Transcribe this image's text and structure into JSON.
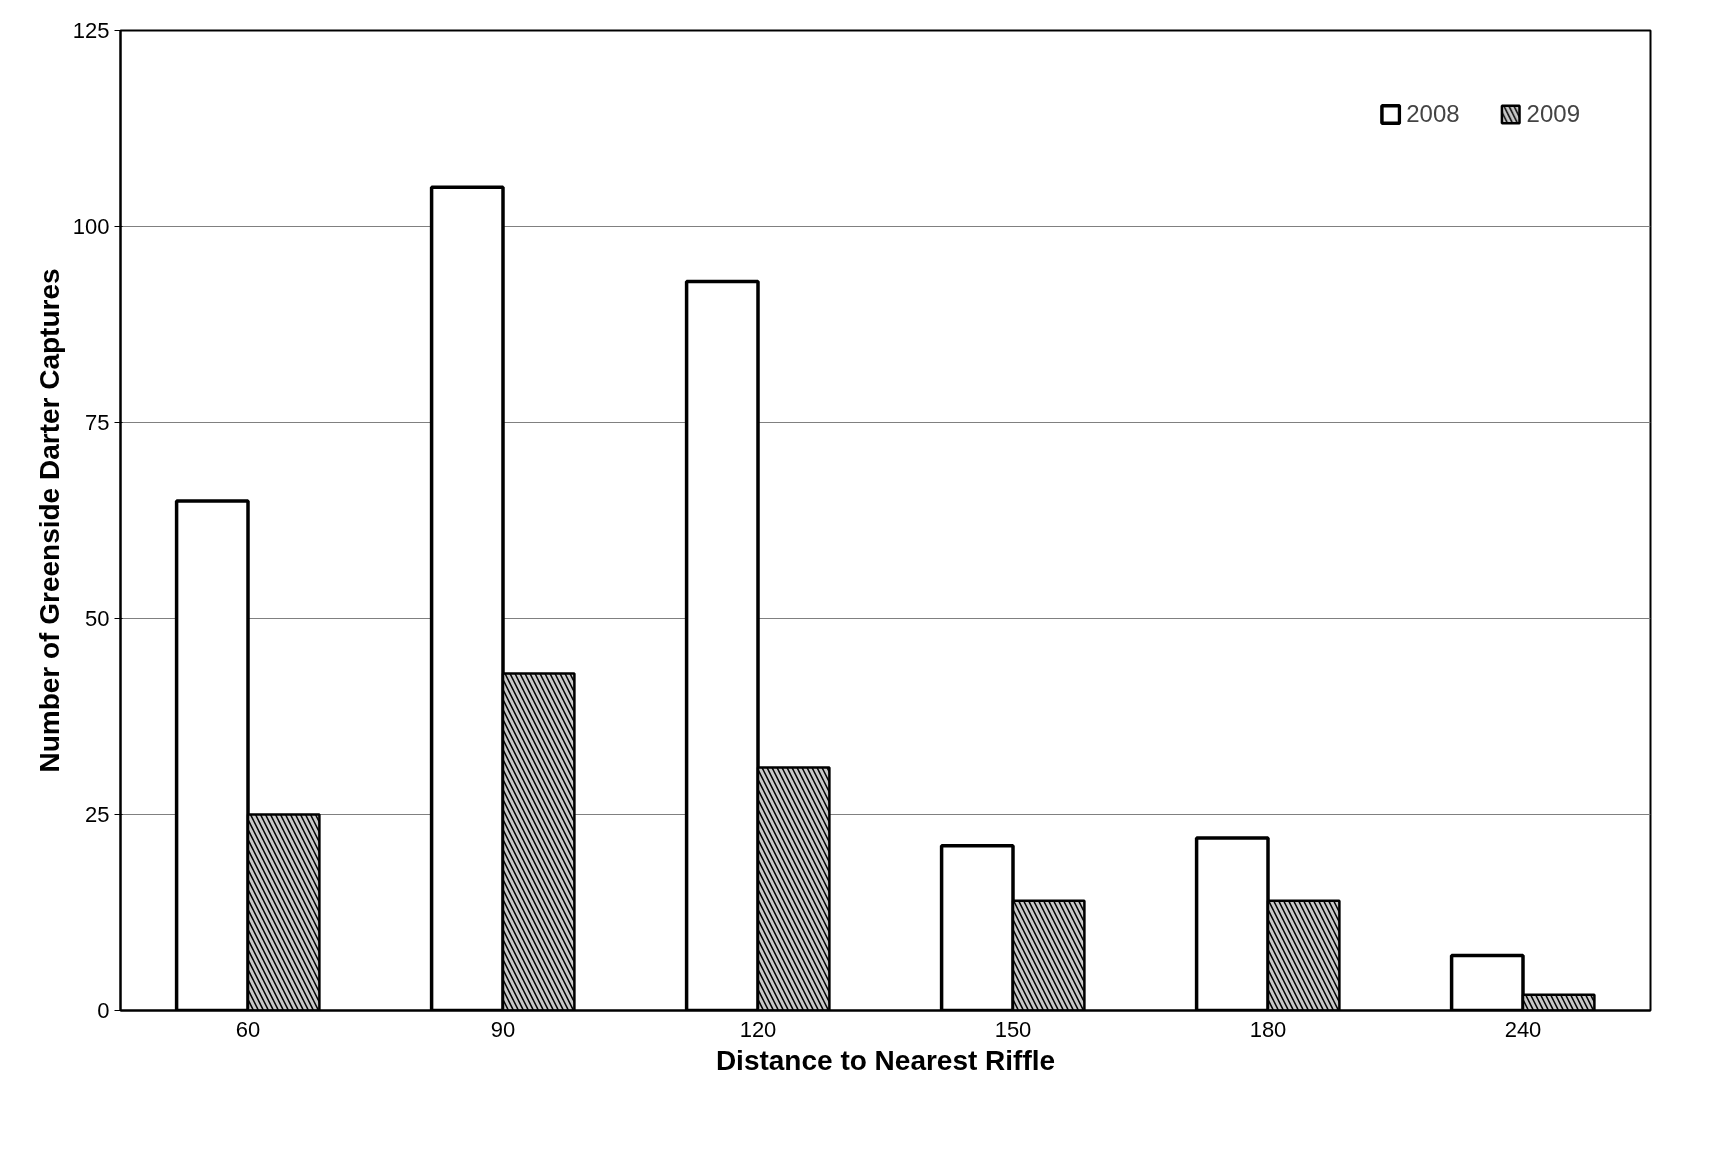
{
  "chart_data": {
    "type": "bar",
    "xlabel": "Distance to Nearest Riffle",
    "ylabel": "Number of Greenside Darter Captures",
    "categories": [
      "60",
      "90",
      "120",
      "150",
      "180",
      "240"
    ],
    "series": [
      {
        "name": "2008",
        "color": "#ffffff",
        "values": [
          65,
          105,
          93,
          21,
          22,
          7
        ]
      },
      {
        "name": "2009",
        "color": "#c8c8c8",
        "values": [
          25,
          43,
          31,
          14,
          14,
          2
        ]
      }
    ],
    "ylim": [
      0,
      125
    ],
    "yticks": [
      0,
      25,
      50,
      75,
      100,
      125
    ],
    "grid": "y",
    "legend": "top right"
  }
}
